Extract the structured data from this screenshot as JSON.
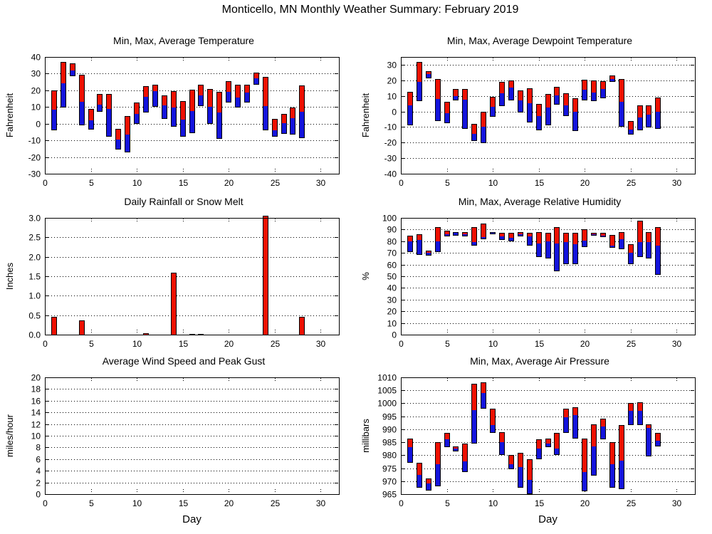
{
  "page": {
    "title": "Monticello, MN Monthly Weather Summary: February 2019"
  },
  "colors": {
    "max_bar_red": "#ee1100",
    "min_bar_blue": "#1414dc",
    "rain_bar_red": "#ee1100",
    "bar_outline": "#000000",
    "frame": "#000000",
    "grid": "#000000",
    "background": "#ffffff",
    "text": "#000000"
  },
  "chart_data": [
    {
      "id": "temperature",
      "type": "bar",
      "bar_style": "range",
      "title": "Min, Max, Average Temperature",
      "ylabel": "Fahrenheit",
      "xlabel": "",
      "grid": "horizontal-dotted",
      "xlim": [
        0,
        32
      ],
      "xticks": [
        0,
        5,
        10,
        15,
        20,
        25,
        30
      ],
      "ylim": [
        -30,
        40
      ],
      "yticks": [
        -30,
        -20,
        -10,
        0,
        10,
        20,
        30,
        40
      ],
      "ytick_labels": [
        "-30",
        "-20",
        "-10",
        "0",
        "10",
        "20",
        "30",
        "40"
      ],
      "days": [
        1,
        2,
        3,
        4,
        5,
        6,
        7,
        8,
        9,
        10,
        11,
        12,
        13,
        14,
        15,
        16,
        17,
        18,
        19,
        20,
        21,
        22,
        23,
        24,
        25,
        26,
        27,
        28
      ],
      "min": [
        -4,
        9.5,
        28.5,
        -1,
        -3.5,
        7,
        -8,
        -15.5,
        -17,
        0,
        6.5,
        10,
        3,
        -2,
        -8,
        -5.5,
        10.5,
        0,
        -9,
        12.5,
        9.5,
        12.5,
        23.5,
        -4,
        -8,
        -6,
        -6.5,
        -8.5
      ],
      "avg": [
        8.5,
        24,
        32,
        13,
        2,
        11.5,
        9,
        -9.5,
        -6.5,
        6,
        16,
        19.5,
        11,
        9.5,
        2.5,
        7.5,
        17,
        10,
        6.5,
        19,
        15.5,
        18.5,
        27,
        10.5,
        -4,
        0.5,
        3.5,
        7
      ],
      "max": [
        20,
        37,
        36,
        29.5,
        9,
        18,
        18,
        -3,
        4.5,
        12.5,
        22.5,
        23.5,
        17,
        19.5,
        13.5,
        20.5,
        23.5,
        21,
        19,
        25.5,
        23.5,
        23.5,
        30.5,
        28,
        3,
        6,
        9.5,
        23
      ]
    },
    {
      "id": "dewpoint",
      "type": "bar",
      "bar_style": "range",
      "title": "Min, Max, Average Dewpoint Temperature",
      "ylabel": "Fahrenheit",
      "xlabel": "",
      "grid": "horizontal-dotted",
      "xlim": [
        0,
        32
      ],
      "xticks": [
        0,
        5,
        10,
        15,
        20,
        25,
        30
      ],
      "ylim": [
        -40,
        35
      ],
      "yticks": [
        -40,
        -30,
        -20,
        -10,
        0,
        10,
        20,
        30
      ],
      "ytick_labels": [
        "-40",
        "-30",
        "-20",
        "-10",
        "0",
        "10",
        "20",
        "30"
      ],
      "days": [
        1,
        2,
        3,
        4,
        5,
        6,
        7,
        8,
        9,
        10,
        11,
        12,
        13,
        14,
        15,
        16,
        17,
        18,
        19,
        20,
        21,
        22,
        23,
        24,
        25,
        26,
        27,
        28
      ],
      "min": [
        -9,
        6.5,
        21.5,
        -6,
        -7.5,
        7,
        -11,
        -19,
        -20.5,
        -3.5,
        3.5,
        7,
        -0.5,
        -7,
        -12,
        -9,
        4.5,
        -3,
        -12.5,
        7,
        6.5,
        8.5,
        19,
        -10,
        -15,
        -12,
        -10.5,
        -11
      ],
      "avg": [
        4,
        19,
        24,
        8,
        -1,
        10,
        7.5,
        -14.5,
        -10,
        3,
        11.5,
        15.5,
        7,
        5.5,
        -3,
        2.5,
        10.5,
        4,
        0,
        14,
        12,
        14.5,
        21,
        6,
        -11.5,
        -4,
        -2,
        0
      ],
      "max": [
        12.5,
        32,
        26,
        21,
        6,
        14.5,
        14.5,
        -8,
        0,
        9.5,
        19,
        20,
        13.5,
        15,
        5,
        11,
        16,
        11.5,
        8.5,
        20.5,
        20,
        19.5,
        23,
        21,
        -6,
        4,
        4,
        9
      ]
    },
    {
      "id": "rain",
      "type": "bar",
      "bar_style": "single",
      "title": "Daily Rainfall or Snow Melt",
      "ylabel": "Inches",
      "xlabel": "",
      "grid": "horizontal-dotted",
      "xlim": [
        0,
        32
      ],
      "xticks": [
        0,
        5,
        10,
        15,
        20,
        25,
        30
      ],
      "ylim": [
        0,
        3.0
      ],
      "yticks": [
        0,
        0.5,
        1.0,
        1.5,
        2.0,
        2.5,
        3.0
      ],
      "ytick_labels": [
        "0.0",
        "0.5",
        "1.0",
        "1.5",
        "2.0",
        "2.5",
        "3.0"
      ],
      "days": [
        1,
        4,
        11,
        14,
        16,
        17,
        24,
        28
      ],
      "values": [
        0.46,
        0.36,
        0.03,
        1.6,
        0.01,
        0.01,
        3.05,
        0.46
      ]
    },
    {
      "id": "humidity",
      "type": "bar",
      "bar_style": "range",
      "title": "Min, Max, Average Relative Humidity",
      "ylabel": "%",
      "xlabel": "",
      "grid": "horizontal-dotted",
      "xlim": [
        0,
        32
      ],
      "xticks": [
        0,
        5,
        10,
        15,
        20,
        25,
        30
      ],
      "ylim": [
        0,
        100
      ],
      "yticks": [
        0,
        10,
        20,
        30,
        40,
        50,
        60,
        70,
        80,
        90,
        100
      ],
      "ytick_labels": [
        "0",
        "10",
        "20",
        "30",
        "40",
        "50",
        "60",
        "70",
        "80",
        "90",
        "100"
      ],
      "days": [
        1,
        2,
        3,
        4,
        5,
        6,
        7,
        8,
        9,
        10,
        11,
        12,
        13,
        14,
        15,
        16,
        17,
        18,
        19,
        20,
        21,
        22,
        23,
        24,
        25,
        26,
        27,
        28
      ],
      "min": [
        71,
        68,
        67.5,
        71,
        84,
        85,
        84,
        76,
        82,
        86,
        81,
        80,
        84,
        76,
        66.5,
        65,
        54.5,
        60.5,
        60.5,
        75,
        85,
        83.5,
        74.5,
        73,
        60.5,
        66.5,
        65.5,
        51.5
      ],
      "avg": [
        80,
        81,
        70,
        80,
        86,
        87,
        86,
        79,
        83.5,
        87,
        84,
        83,
        86,
        84,
        78,
        80,
        78,
        79,
        77.5,
        80.5,
        86,
        85,
        76.5,
        82,
        70,
        79,
        79,
        76
      ],
      "max": [
        85,
        86,
        72,
        92,
        89,
        88,
        88,
        92,
        95,
        88,
        87,
        87,
        88,
        87,
        88,
        87,
        92,
        87,
        87,
        90,
        87,
        87.5,
        85.5,
        88,
        77.5,
        97.5,
        88,
        92
      ]
    },
    {
      "id": "wind",
      "type": "bar",
      "bar_style": "single",
      "title": "Average Wind Speed and Peak Gust",
      "ylabel": "miles/hour",
      "xlabel": "Day",
      "grid": "horizontal-dotted",
      "xlim": [
        0,
        32
      ],
      "xticks": [
        0,
        5,
        10,
        15,
        20,
        25,
        30
      ],
      "ylim": [
        0,
        20
      ],
      "yticks": [
        0,
        2,
        4,
        6,
        8,
        10,
        12,
        14,
        16,
        18,
        20
      ],
      "ytick_labels": [
        "0",
        "2",
        "4",
        "6",
        "8",
        "10",
        "12",
        "14",
        "16",
        "18",
        "20"
      ],
      "days": [],
      "values": []
    },
    {
      "id": "pressure",
      "type": "bar",
      "bar_style": "range",
      "title": "Min, Max, Average Air Pressure",
      "ylabel": "millibars",
      "xlabel": "Day",
      "grid": "horizontal-dotted",
      "xlim": [
        0,
        32
      ],
      "xticks": [
        0,
        5,
        10,
        15,
        20,
        25,
        30
      ],
      "ylim": [
        965,
        1010
      ],
      "yticks": [
        965,
        970,
        975,
        980,
        985,
        990,
        995,
        1000,
        1005,
        1010
      ],
      "ytick_labels": [
        "965",
        "970",
        "975",
        "980",
        "985",
        "990",
        "995",
        "1000",
        "1005",
        "1010"
      ],
      "days": [
        1,
        2,
        3,
        4,
        5,
        6,
        7,
        8,
        9,
        10,
        11,
        12,
        13,
        14,
        15,
        16,
        17,
        18,
        19,
        20,
        21,
        22,
        23,
        24,
        25,
        26,
        27,
        28
      ],
      "min": [
        977,
        967.5,
        966.5,
        968,
        983,
        981.5,
        973.5,
        984.5,
        998,
        988.5,
        980,
        974.5,
        967.5,
        965,
        978.5,
        983,
        980,
        988.5,
        986.5,
        966,
        972,
        986,
        967.5,
        967,
        991.5,
        991.5,
        979.5,
        983.5
      ],
      "avg": [
        983,
        972.5,
        969,
        976.5,
        986,
        982.5,
        977.5,
        997.5,
        1004,
        991.5,
        985,
        976.5,
        975.5,
        970.5,
        982.5,
        984.5,
        982.5,
        994.5,
        995.5,
        973.5,
        983.5,
        991,
        976.5,
        978,
        997,
        997,
        990.5,
        985.5
      ],
      "max": [
        986.5,
        977,
        971,
        985,
        988.5,
        983.5,
        984.5,
        1007.5,
        1008,
        998,
        989,
        980,
        981,
        978.5,
        986,
        986.5,
        988.5,
        998,
        998.5,
        986.5,
        992,
        994,
        985,
        991.5,
        1000,
        1000.5,
        992,
        988.5
      ]
    }
  ]
}
